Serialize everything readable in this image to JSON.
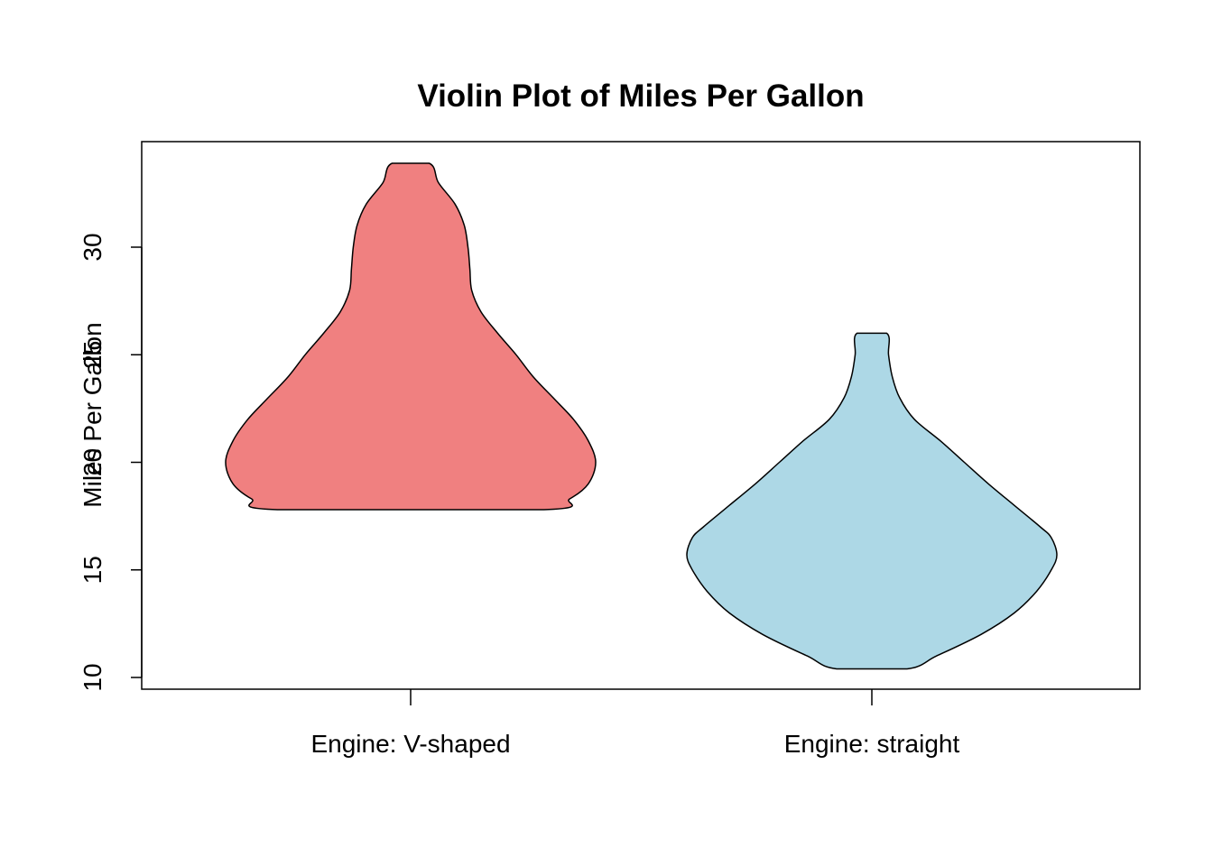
{
  "chart_data": {
    "type": "violin",
    "title": "Violin Plot of Miles Per Gallon",
    "xlabel": "",
    "ylabel": "Miles Per Gallon",
    "ylim": [
      9.5,
      35
    ],
    "y_ticks": [
      10,
      15,
      20,
      25,
      30
    ],
    "categories": [
      "Engine: V-shaped",
      "Engine: straight"
    ],
    "series": [
      {
        "category": "Engine: V-shaped",
        "color": "#F08080",
        "range": [
          17.8,
          33.9
        ],
        "density_profile": [
          {
            "y": 17.8,
            "w": 0.72
          },
          {
            "y": 18.3,
            "w": 0.86
          },
          {
            "y": 19.0,
            "w": 0.96
          },
          {
            "y": 20.0,
            "w": 1.0
          },
          {
            "y": 21.0,
            "w": 0.96
          },
          {
            "y": 22.0,
            "w": 0.88
          },
          {
            "y": 23.0,
            "w": 0.77
          },
          {
            "y": 24.0,
            "w": 0.66
          },
          {
            "y": 25.0,
            "w": 0.57
          },
          {
            "y": 26.0,
            "w": 0.47
          },
          {
            "y": 27.0,
            "w": 0.38
          },
          {
            "y": 28.0,
            "w": 0.33
          },
          {
            "y": 29.0,
            "w": 0.32
          },
          {
            "y": 30.0,
            "w": 0.31
          },
          {
            "y": 31.0,
            "w": 0.29
          },
          {
            "y": 32.0,
            "w": 0.24
          },
          {
            "y": 33.0,
            "w": 0.15
          },
          {
            "y": 33.9,
            "w": 0.1
          }
        ]
      },
      {
        "category": "Engine: straight",
        "color": "#ADD8E6",
        "range": [
          10.4,
          26.0
        ],
        "density_profile": [
          {
            "y": 10.4,
            "w": 0.19
          },
          {
            "y": 11.0,
            "w": 0.35
          },
          {
            "y": 12.0,
            "w": 0.59
          },
          {
            "y": 13.0,
            "w": 0.77
          },
          {
            "y": 14.0,
            "w": 0.89
          },
          {
            "y": 15.0,
            "w": 0.97
          },
          {
            "y": 15.7,
            "w": 1.0
          },
          {
            "y": 16.5,
            "w": 0.97
          },
          {
            "y": 17.0,
            "w": 0.91
          },
          {
            "y": 18.0,
            "w": 0.77
          },
          {
            "y": 19.0,
            "w": 0.63
          },
          {
            "y": 20.0,
            "w": 0.5
          },
          {
            "y": 21.0,
            "w": 0.37
          },
          {
            "y": 22.0,
            "w": 0.23
          },
          {
            "y": 23.0,
            "w": 0.15
          },
          {
            "y": 24.0,
            "w": 0.11
          },
          {
            "y": 25.0,
            "w": 0.09
          },
          {
            "y": 26.0,
            "w": 0.08
          }
        ]
      }
    ]
  }
}
